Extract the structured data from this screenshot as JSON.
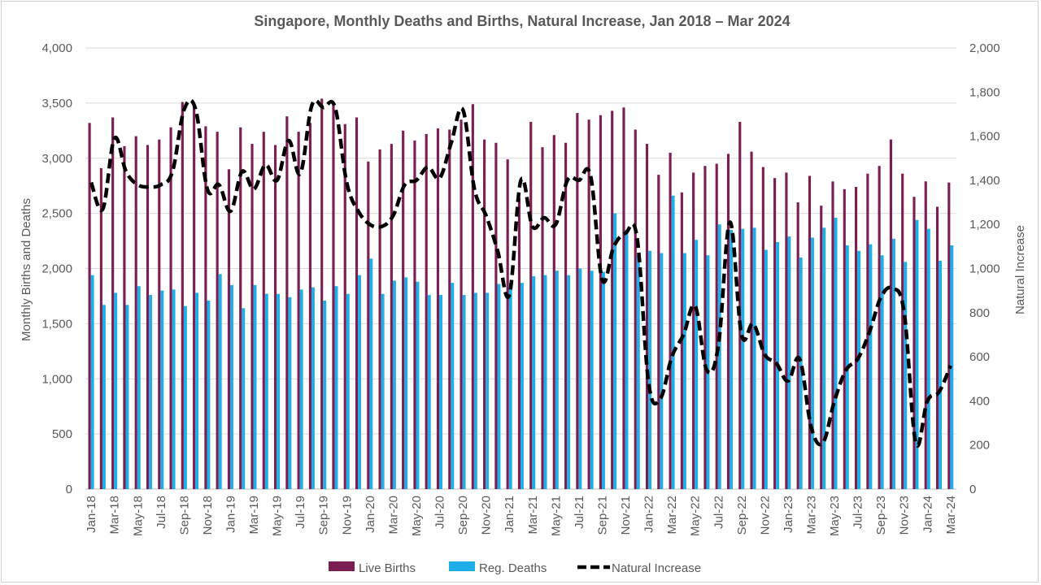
{
  "chart_data": {
    "type": "bar",
    "title": "Singapore, Monthly Deaths and Births, Natural Increase, Jan 2018 – Mar 2024",
    "ylabel": "Monthly Births and Deaths",
    "y2label": "Natural Increase",
    "ylim": [
      0,
      4000
    ],
    "y2lim": [
      0,
      2000
    ],
    "yticks": [
      "0",
      "500",
      "1,000",
      "1,500",
      "2,000",
      "2,500",
      "3,000",
      "3,500",
      "4,000"
    ],
    "y2ticks": [
      "0",
      "200",
      "400",
      "600",
      "800",
      "1,000",
      "1,200",
      "1,400",
      "1,600",
      "1,800",
      "2,000"
    ],
    "grid": true,
    "legend_position": "bottom",
    "categories": [
      "Jan-18",
      "Feb-18",
      "Mar-18",
      "Apr-18",
      "May-18",
      "Jun-18",
      "Jul-18",
      "Aug-18",
      "Sep-18",
      "Oct-18",
      "Nov-18",
      "Dec-18",
      "Jan-19",
      "Feb-19",
      "Mar-19",
      "Apr-19",
      "May-19",
      "Jun-19",
      "Jul-19",
      "Aug-19",
      "Sep-19",
      "Oct-19",
      "Nov-19",
      "Dec-19",
      "Jan-20",
      "Feb-20",
      "Mar-20",
      "Apr-20",
      "May-20",
      "Jun-20",
      "Jul-20",
      "Aug-20",
      "Sep-20",
      "Oct-20",
      "Nov-20",
      "Dec-20",
      "Jan-21",
      "Feb-21",
      "Mar-21",
      "Apr-21",
      "May-21",
      "Jun-21",
      "Jul-21",
      "Aug-21",
      "Sep-21",
      "Oct-21",
      "Nov-21",
      "Dec-21",
      "Jan-22",
      "Feb-22",
      "Mar-22",
      "Apr-22",
      "May-22",
      "Jun-22",
      "Jul-22",
      "Aug-22",
      "Sep-22",
      "Oct-22",
      "Nov-22",
      "Dec-22",
      "Jan-23",
      "Feb-23",
      "Mar-23",
      "Apr-23",
      "May-23",
      "Jun-23",
      "Jul-23",
      "Aug-23",
      "Sep-23",
      "Oct-23",
      "Nov-23",
      "Dec-23",
      "Jan-24",
      "Feb-24",
      "Mar-24"
    ],
    "series": [
      {
        "name": "Live Births",
        "axis": "left",
        "kind": "bar",
        "color": "#7b1e52",
        "values": [
          3320,
          2910,
          3370,
          3110,
          3200,
          3120,
          3170,
          3280,
          3510,
          3480,
          3290,
          3240,
          2900,
          3280,
          3130,
          3240,
          3120,
          3380,
          3240,
          3320,
          3540,
          3480,
          3310,
          3370,
          2970,
          3080,
          3130,
          3250,
          3160,
          3220,
          3270,
          3260,
          3350,
          3490,
          3170,
          3140,
          2990,
          2640,
          3330,
          3100,
          3210,
          3140,
          3410,
          3350,
          3390,
          3430,
          3460,
          3260,
          3130,
          2850,
          3050,
          2690,
          2870,
          2930,
          2950,
          3040,
          3330,
          3060,
          2920,
          2820,
          2870,
          2600,
          2840,
          2570,
          2790,
          2720,
          2740,
          2860,
          2930,
          3170,
          2860,
          2650,
          2790,
          2560,
          2780
        ]
      },
      {
        "name": "Reg. Deaths",
        "axis": "left",
        "kind": "bar",
        "color": "#1eaee8",
        "values": [
          1940,
          1670,
          1780,
          1670,
          1840,
          1760,
          1800,
          1810,
          1660,
          1780,
          1710,
          1950,
          1850,
          1640,
          1850,
          1770,
          1770,
          1740,
          1810,
          1830,
          1710,
          1840,
          1770,
          1940,
          2090,
          1770,
          1890,
          1920,
          1880,
          1760,
          1760,
          1870,
          1760,
          1780,
          1780,
          1860,
          1870,
          1870,
          1930,
          1940,
          1980,
          1940,
          2000,
          1980,
          1970,
          2500,
          2350,
          2120,
          2160,
          2140,
          2660,
          2140,
          2260,
          2120,
          2400,
          2350,
          2360,
          2370,
          2170,
          2240,
          2290,
          2100,
          2280,
          2370,
          2460,
          2210,
          2160,
          2220,
          2120,
          2270,
          2060,
          2440,
          2360,
          2070,
          2210
        ]
      },
      {
        "name": "Natural Increase",
        "axis": "right",
        "kind": "line",
        "color": "#000000",
        "values": [
          1390,
          1270,
          1590,
          1440,
          1380,
          1370,
          1380,
          1440,
          1720,
          1720,
          1360,
          1380,
          1260,
          1440,
          1360,
          1470,
          1400,
          1580,
          1430,
          1740,
          1730,
          1730,
          1390,
          1260,
          1200,
          1190,
          1240,
          1380,
          1400,
          1460,
          1410,
          1570,
          1720,
          1360,
          1240,
          1080,
          880,
          1400,
          1190,
          1230,
          1200,
          1400,
          1400,
          1420,
          950,
          1100,
          1160,
          1140,
          480,
          410,
          600,
          700,
          830,
          540,
          650,
          1210,
          700,
          750,
          610,
          570,
          490,
          590,
          280,
          210,
          400,
          540,
          590,
          710,
          870,
          910,
          800,
          210,
          400,
          440,
          560
        ]
      }
    ]
  }
}
